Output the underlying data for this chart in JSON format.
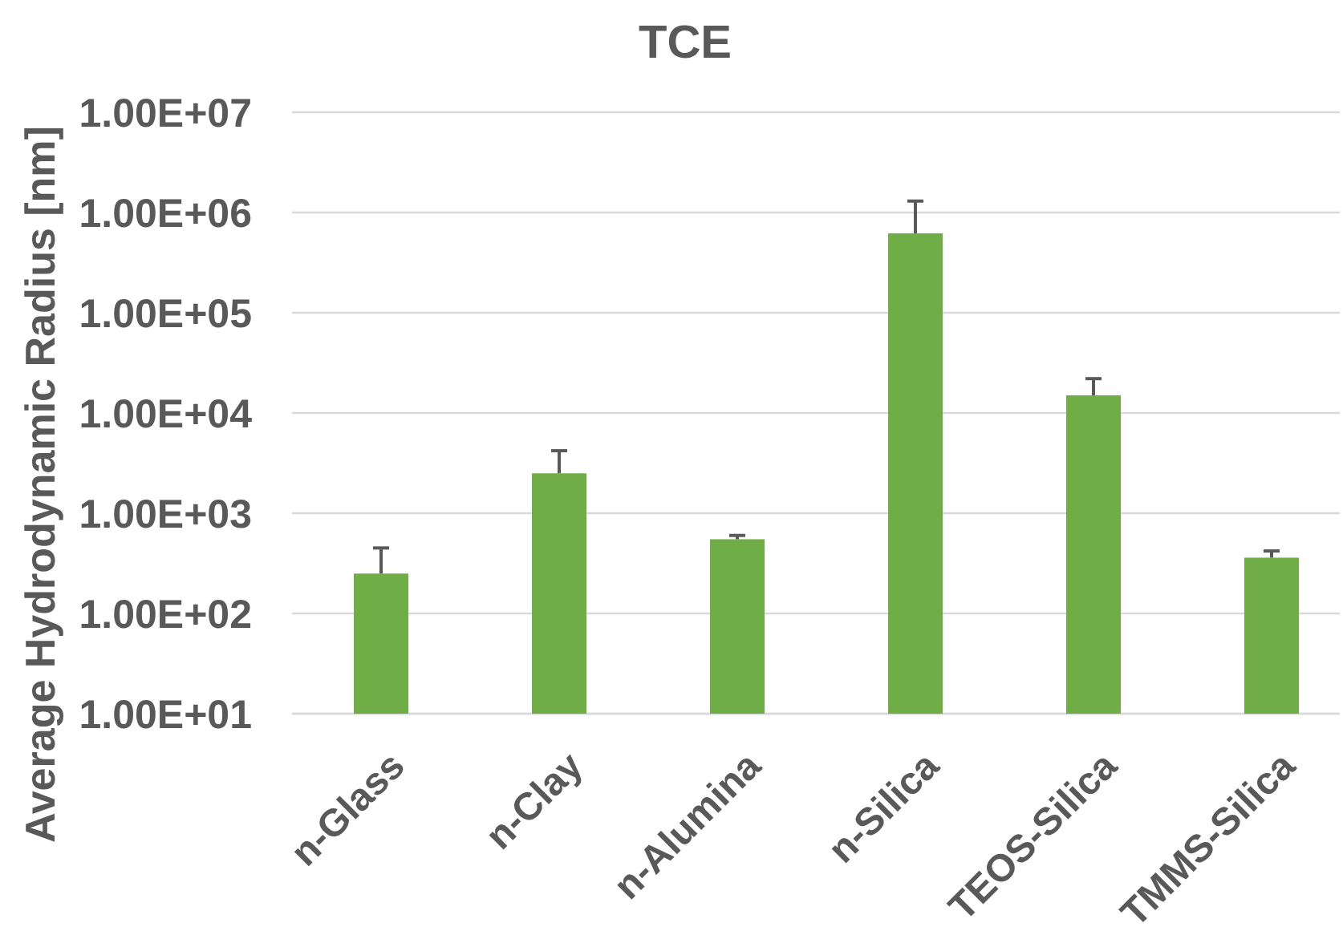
{
  "chart_data": {
    "type": "bar",
    "title": "TCE",
    "ylabel": "Average Hydrodynamic Radius [nm]",
    "categories": [
      "n-Glass",
      "n-Clay",
      "n-Alumina",
      "n-Silica",
      "TEOS-Silica",
      "TMMS-Silica"
    ],
    "values": [
      250,
      2500,
      550,
      620000,
      15000,
      360
    ],
    "color": "#70ad47",
    "errors": [
      [
        250,
        450
      ],
      [
        2500,
        4200
      ],
      [
        550,
        600
      ],
      [
        620000,
        1300000
      ],
      [
        15000,
        22000
      ],
      [
        360,
        420
      ]
    ],
    "log": true,
    "ylim": [
      10,
      10000000
    ],
    "yticks": [
      {
        "value": 10,
        "label": "1.00E+01"
      },
      {
        "value": 100,
        "label": "1.00E+02"
      },
      {
        "value": 1000,
        "label": "1.00E+03"
      },
      {
        "value": 10000,
        "label": "1.00E+04"
      },
      {
        "value": 100000,
        "label": "1.00E+05"
      },
      {
        "value": 1000000,
        "label": "1.00E+06"
      },
      {
        "value": 10000000,
        "label": "1.00E+07"
      }
    ],
    "grid": true
  }
}
